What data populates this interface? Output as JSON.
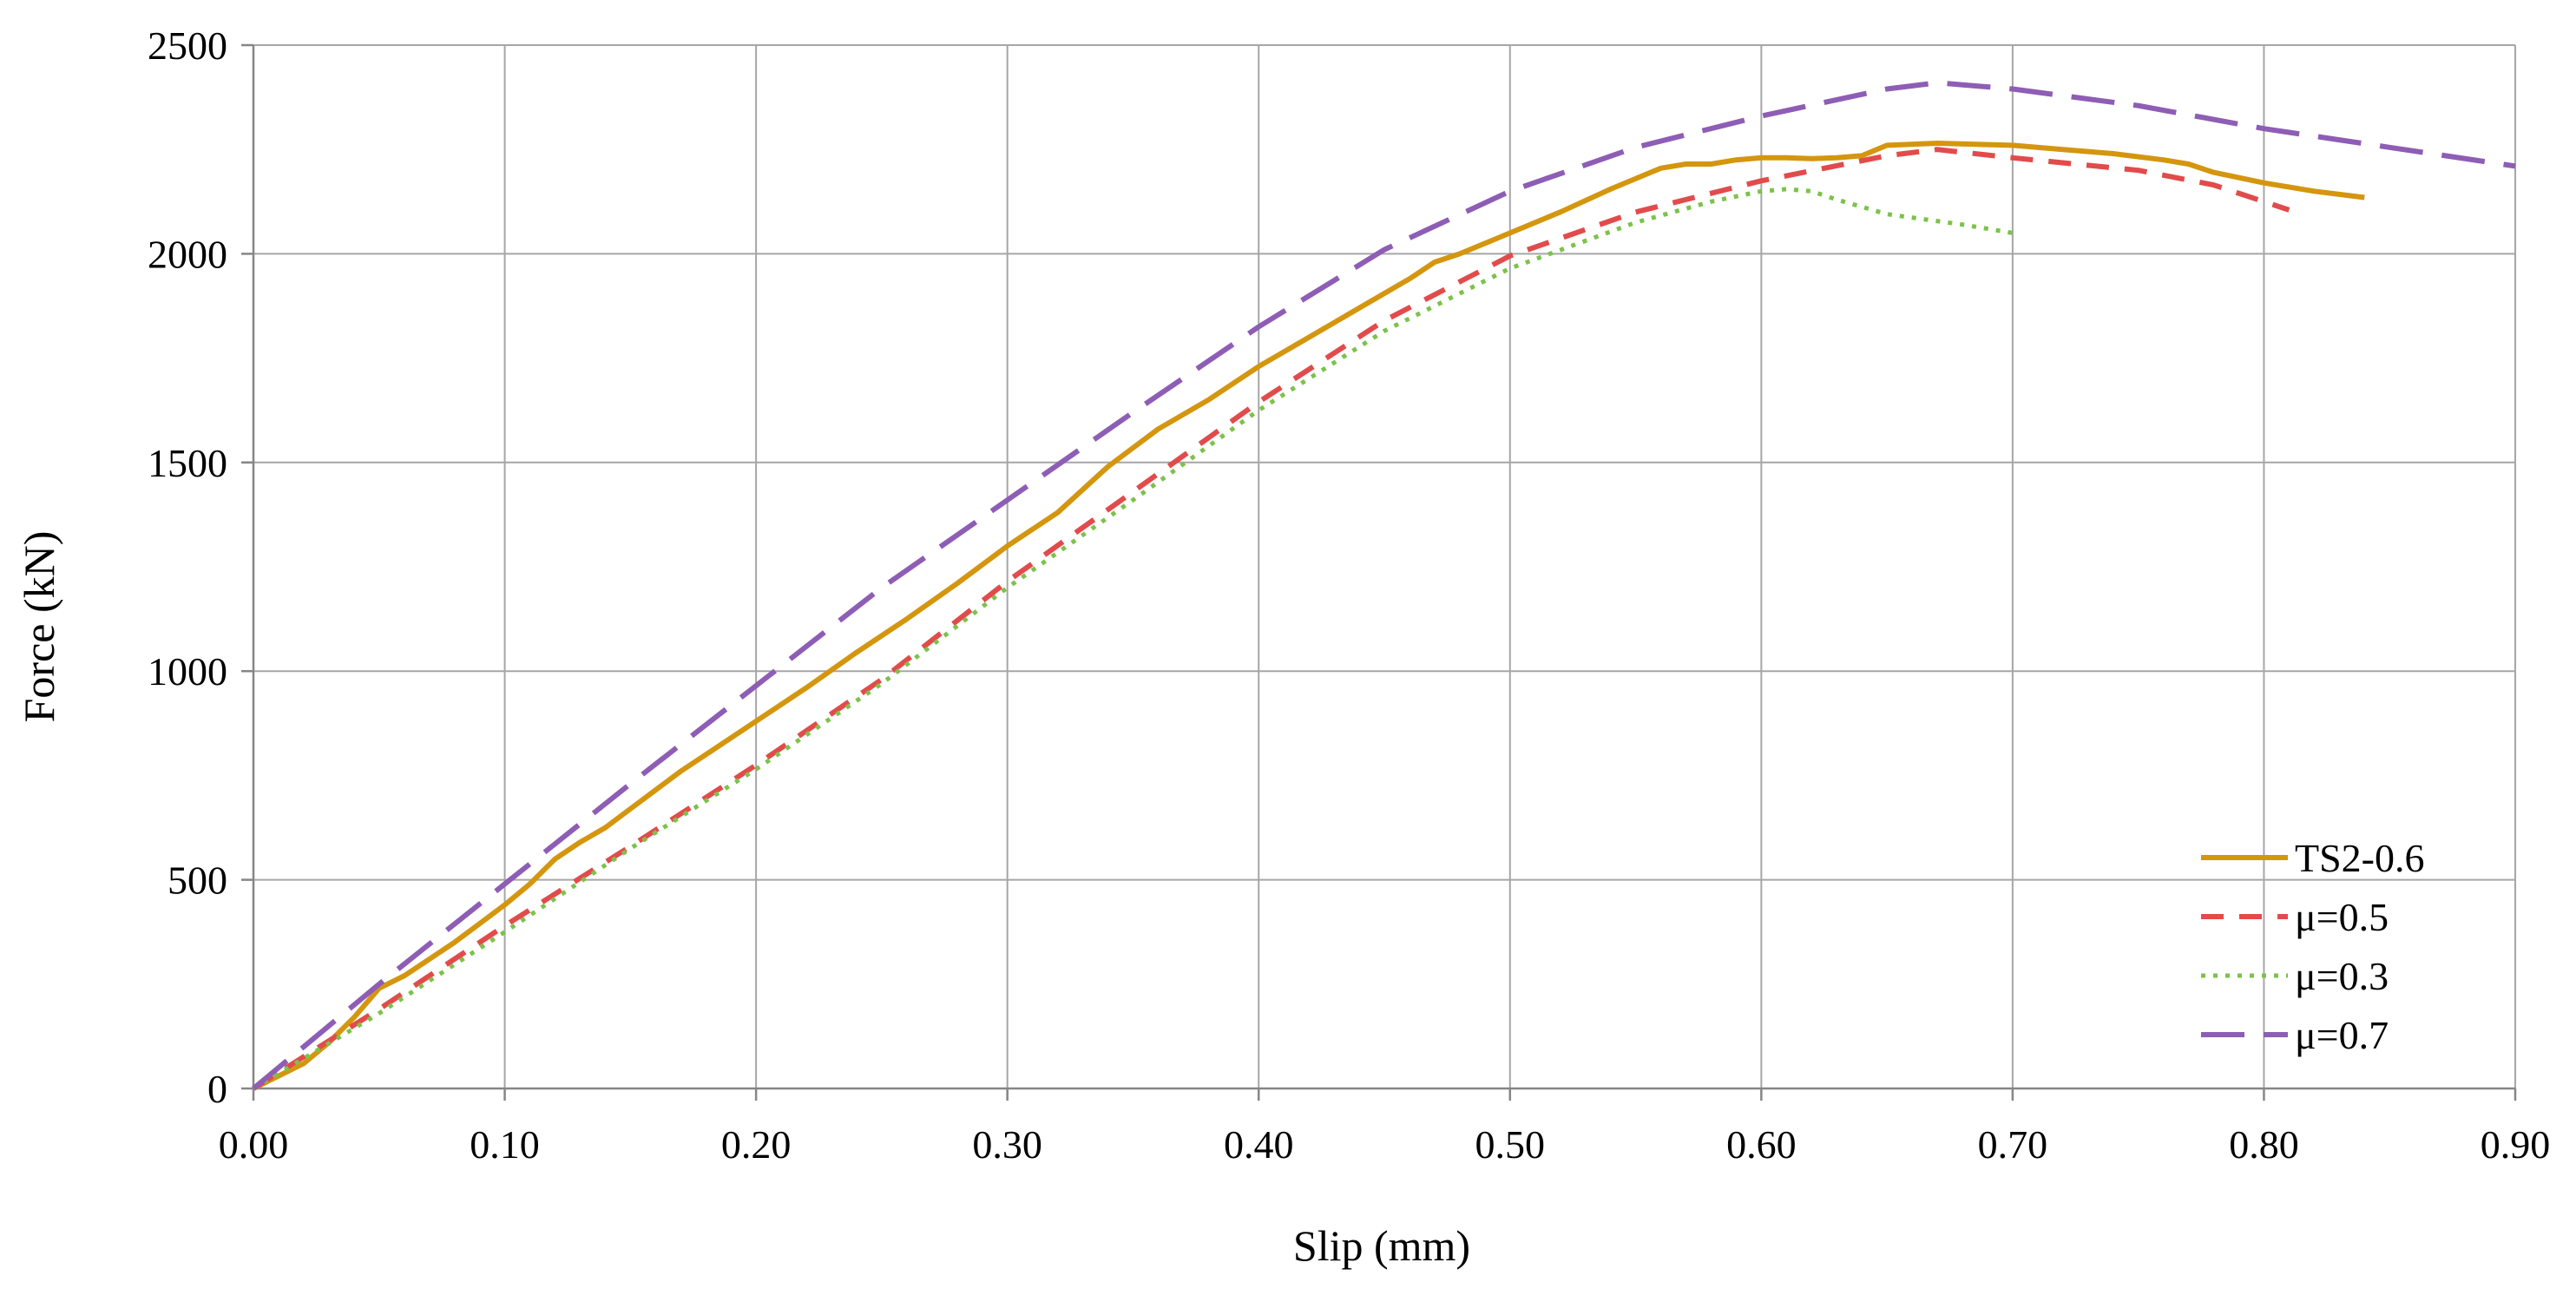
{
  "chart_data": {
    "type": "line",
    "title": "",
    "xlabel": "Slip (mm)",
    "ylabel": "Force (kN)",
    "xlim": [
      0,
      0.9
    ],
    "ylim": [
      0,
      2500
    ],
    "x_ticks": [
      "0.00",
      "0.10",
      "0.20",
      "0.30",
      "0.40",
      "0.50",
      "0.60",
      "0.70",
      "0.80",
      "0.90"
    ],
    "y_ticks": [
      "0",
      "500",
      "1000",
      "1500",
      "2000",
      "2500"
    ],
    "grid": true,
    "legend_position": "bottom-right",
    "series": [
      {
        "name": "TS2-0.6",
        "color": "#d4960e",
        "style": "solid",
        "points": [
          [
            0,
            0
          ],
          [
            0.01,
            30
          ],
          [
            0.02,
            60
          ],
          [
            0.03,
            110
          ],
          [
            0.04,
            170
          ],
          [
            0.05,
            240
          ],
          [
            0.06,
            270
          ],
          [
            0.07,
            310
          ],
          [
            0.08,
            350
          ],
          [
            0.09,
            395
          ],
          [
            0.1,
            440
          ],
          [
            0.11,
            490
          ],
          [
            0.12,
            550
          ],
          [
            0.13,
            590
          ],
          [
            0.14,
            625
          ],
          [
            0.15,
            670
          ],
          [
            0.16,
            715
          ],
          [
            0.17,
            760
          ],
          [
            0.18,
            800
          ],
          [
            0.19,
            840
          ],
          [
            0.2,
            880
          ],
          [
            0.22,
            960
          ],
          [
            0.24,
            1045
          ],
          [
            0.26,
            1125
          ],
          [
            0.28,
            1210
          ],
          [
            0.3,
            1300
          ],
          [
            0.32,
            1380
          ],
          [
            0.34,
            1490
          ],
          [
            0.36,
            1580
          ],
          [
            0.38,
            1650
          ],
          [
            0.4,
            1730
          ],
          [
            0.42,
            1800
          ],
          [
            0.44,
            1870
          ],
          [
            0.46,
            1940
          ],
          [
            0.47,
            1980
          ],
          [
            0.48,
            2000
          ],
          [
            0.5,
            2050
          ],
          [
            0.52,
            2100
          ],
          [
            0.54,
            2155
          ],
          [
            0.56,
            2205
          ],
          [
            0.57,
            2215
          ],
          [
            0.58,
            2215
          ],
          [
            0.59,
            2225
          ],
          [
            0.6,
            2230
          ],
          [
            0.61,
            2230
          ],
          [
            0.62,
            2228
          ],
          [
            0.63,
            2230
          ],
          [
            0.64,
            2235
          ],
          [
            0.65,
            2260
          ],
          [
            0.67,
            2265
          ],
          [
            0.7,
            2260
          ],
          [
            0.72,
            2250
          ],
          [
            0.74,
            2240
          ],
          [
            0.76,
            2225
          ],
          [
            0.77,
            2215
          ],
          [
            0.78,
            2195
          ],
          [
            0.8,
            2170
          ],
          [
            0.82,
            2150
          ],
          [
            0.84,
            2135
          ]
        ]
      },
      {
        "name": "μ=0.5",
        "color": "#e24b4b",
        "style": "dash",
        "points": [
          [
            0,
            0
          ],
          [
            0.05,
            190
          ],
          [
            0.1,
            390
          ],
          [
            0.15,
            580
          ],
          [
            0.2,
            775
          ],
          [
            0.25,
            980
          ],
          [
            0.3,
            1215
          ],
          [
            0.35,
            1430
          ],
          [
            0.4,
            1645
          ],
          [
            0.45,
            1840
          ],
          [
            0.5,
            1995
          ],
          [
            0.55,
            2100
          ],
          [
            0.6,
            2175
          ],
          [
            0.65,
            2235
          ],
          [
            0.67,
            2250
          ],
          [
            0.7,
            2230
          ],
          [
            0.75,
            2200
          ],
          [
            0.78,
            2165
          ],
          [
            0.81,
            2105
          ]
        ]
      },
      {
        "name": "μ=0.3",
        "color": "#7cc24a",
        "style": "dot",
        "points": [
          [
            0,
            0
          ],
          [
            0.05,
            180
          ],
          [
            0.1,
            375
          ],
          [
            0.15,
            575
          ],
          [
            0.2,
            765
          ],
          [
            0.25,
            970
          ],
          [
            0.3,
            1200
          ],
          [
            0.35,
            1410
          ],
          [
            0.4,
            1625
          ],
          [
            0.45,
            1815
          ],
          [
            0.5,
            1965
          ],
          [
            0.55,
            2075
          ],
          [
            0.58,
            2125
          ],
          [
            0.6,
            2150
          ],
          [
            0.61,
            2155
          ],
          [
            0.62,
            2150
          ],
          [
            0.63,
            2130
          ],
          [
            0.65,
            2095
          ],
          [
            0.68,
            2070
          ],
          [
            0.7,
            2050
          ]
        ]
      },
      {
        "name": "μ=0.7",
        "color": "#8e5db5",
        "style": "longdash",
        "points": [
          [
            0,
            0
          ],
          [
            0.05,
            250
          ],
          [
            0.1,
            490
          ],
          [
            0.15,
            730
          ],
          [
            0.2,
            965
          ],
          [
            0.25,
            1200
          ],
          [
            0.3,
            1410
          ],
          [
            0.35,
            1620
          ],
          [
            0.4,
            1825
          ],
          [
            0.45,
            2010
          ],
          [
            0.5,
            2150
          ],
          [
            0.55,
            2255
          ],
          [
            0.6,
            2330
          ],
          [
            0.65,
            2395
          ],
          [
            0.67,
            2410
          ],
          [
            0.7,
            2395
          ],
          [
            0.75,
            2355
          ],
          [
            0.8,
            2300
          ],
          [
            0.85,
            2255
          ],
          [
            0.9,
            2210
          ]
        ]
      }
    ]
  }
}
